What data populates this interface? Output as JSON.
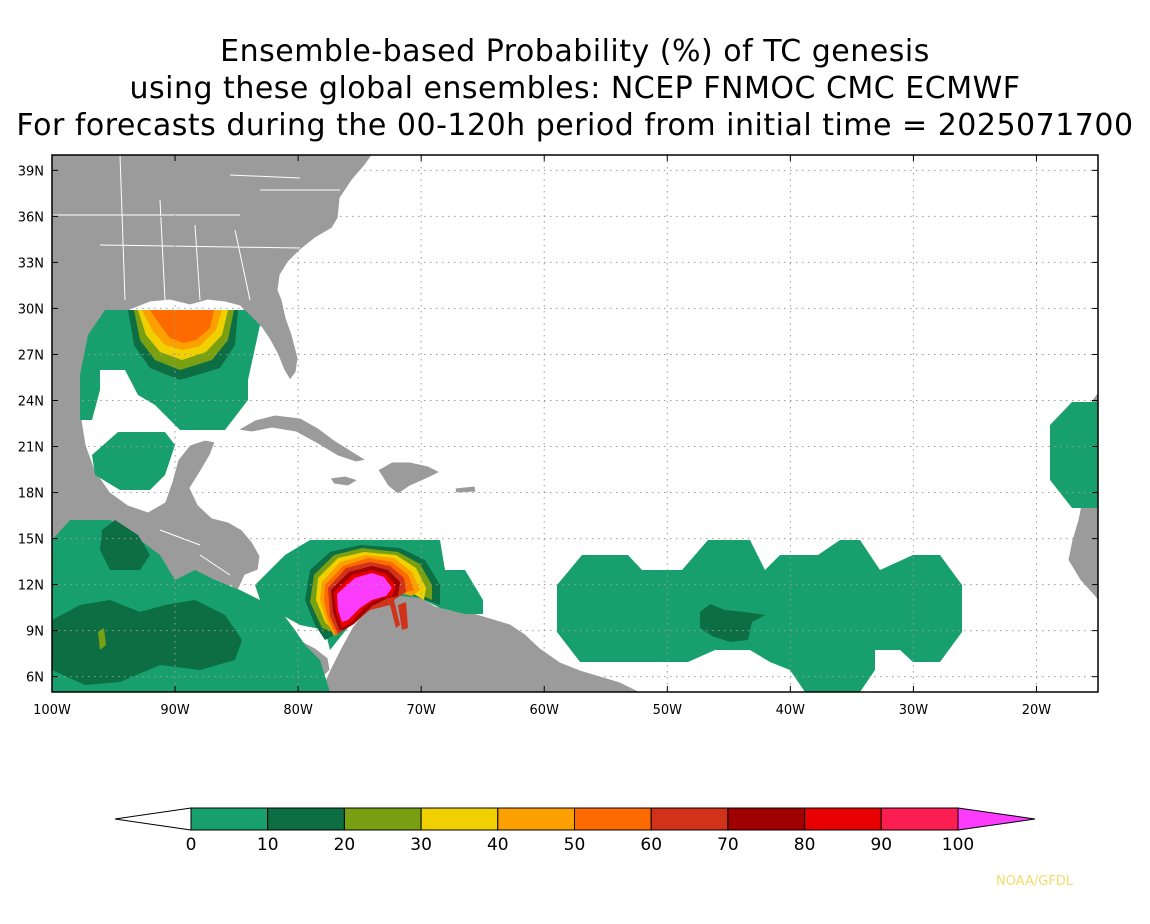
{
  "title": {
    "line1": "Ensemble-based Probability (%) of TC genesis",
    "line2": "using these global ensembles:   NCEP FNMOC CMC ECMWF",
    "line3": "For forecasts during the 00-120h period from initial time = 2025071700"
  },
  "map": {
    "lon_range": [
      -100,
      -15
    ],
    "lat_range": [
      5,
      40
    ],
    "lat_ticks": [
      {
        "value": 39,
        "label": "39N"
      },
      {
        "value": 36,
        "label": "36N"
      },
      {
        "value": 33,
        "label": "33N"
      },
      {
        "value": 30,
        "label": "30N"
      },
      {
        "value": 27,
        "label": "27N"
      },
      {
        "value": 24,
        "label": "24N"
      },
      {
        "value": 21,
        "label": "21N"
      },
      {
        "value": 18,
        "label": "18N"
      },
      {
        "value": 15,
        "label": "15N"
      },
      {
        "value": 12,
        "label": "12N"
      },
      {
        "value": 9,
        "label": "9N"
      },
      {
        "value": 6,
        "label": "6N"
      }
    ],
    "lon_ticks": [
      {
        "value": -100,
        "label": "100W"
      },
      {
        "value": -90,
        "label": "90W"
      },
      {
        "value": -80,
        "label": "80W"
      },
      {
        "value": -70,
        "label": "70W"
      },
      {
        "value": -60,
        "label": "60W"
      },
      {
        "value": -50,
        "label": "50W"
      },
      {
        "value": -40,
        "label": "40W"
      },
      {
        "value": -30,
        "label": "30W"
      },
      {
        "value": -20,
        "label": "20W"
      }
    ],
    "grid": "dotted",
    "land_color": "#9b9b9b"
  },
  "colorbar": {
    "labels": [
      "0",
      "10",
      "20",
      "30",
      "40",
      "50",
      "60",
      "70",
      "80",
      "90",
      "100"
    ],
    "colors": [
      "#17a06e",
      "#0c6e42",
      "#78a012",
      "#f0d000",
      "#fca000",
      "#fc6a00",
      "#d0321a",
      "#a00000",
      "#e80000",
      "#fc1e50"
    ],
    "low_color": "#ffffff",
    "high_color": "#fc3cfc"
  },
  "credit": "NOAA/GFDL"
}
